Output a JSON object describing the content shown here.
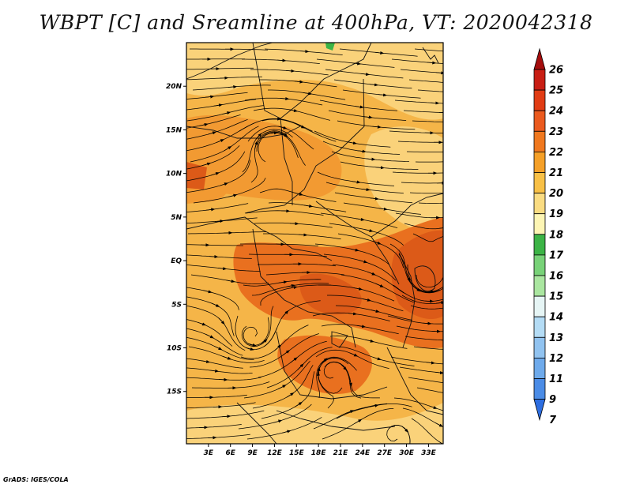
{
  "title": "WBPT [C] and Sreamline at 400hPa, VT: 2020042318",
  "credit": "GrADS: IGES/COLA",
  "map": {
    "lon_range": [
      0,
      35
    ],
    "lat_range": [
      -21,
      25
    ],
    "lat_ticks": [
      {
        "value": 20,
        "label": "20N"
      },
      {
        "value": 15,
        "label": "15N"
      },
      {
        "value": 10,
        "label": "10N"
      },
      {
        "value": 5,
        "label": "5N"
      },
      {
        "value": 0,
        "label": "EQ"
      },
      {
        "value": -5,
        "label": "5S"
      },
      {
        "value": -10,
        "label": "10S"
      },
      {
        "value": -15,
        "label": "15S"
      }
    ],
    "lon_ticks": [
      {
        "value": 3,
        "label": "3E"
      },
      {
        "value": 6,
        "label": "6E"
      },
      {
        "value": 9,
        "label": "9E"
      },
      {
        "value": 12,
        "label": "12E"
      },
      {
        "value": 15,
        "label": "15E"
      },
      {
        "value": 18,
        "label": "18E"
      },
      {
        "value": 21,
        "label": "21E"
      },
      {
        "value": 24,
        "label": "24E"
      },
      {
        "value": 27,
        "label": "27E"
      },
      {
        "value": 30,
        "label": "30E"
      },
      {
        "value": 33,
        "label": "33E"
      }
    ],
    "field_colors": {
      "background": "#f5b548",
      "light": "#fad27a",
      "warm": "#f29a32",
      "hot": "#e9701f",
      "hotter": "#dc5a18",
      "green": "#3cb446"
    }
  },
  "colorbar": {
    "levels": [
      "26",
      "25",
      "24",
      "23",
      "22",
      "21",
      "20",
      "19",
      "18",
      "17",
      "16",
      "15",
      "14",
      "13",
      "12",
      "11",
      "9",
      "7"
    ],
    "colors": [
      "#a50d0d",
      "#c81e14",
      "#e13c14",
      "#eb5a1e",
      "#f0781e",
      "#f5a028",
      "#f8c046",
      "#fadc82",
      "#fdf5b4",
      "#3cb446",
      "#78d278",
      "#aae6a0",
      "#e6f5f5",
      "#b4dcf5",
      "#91c3f0",
      "#6eaaeb",
      "#4b8ce6",
      "#2d6ee1"
    ]
  }
}
